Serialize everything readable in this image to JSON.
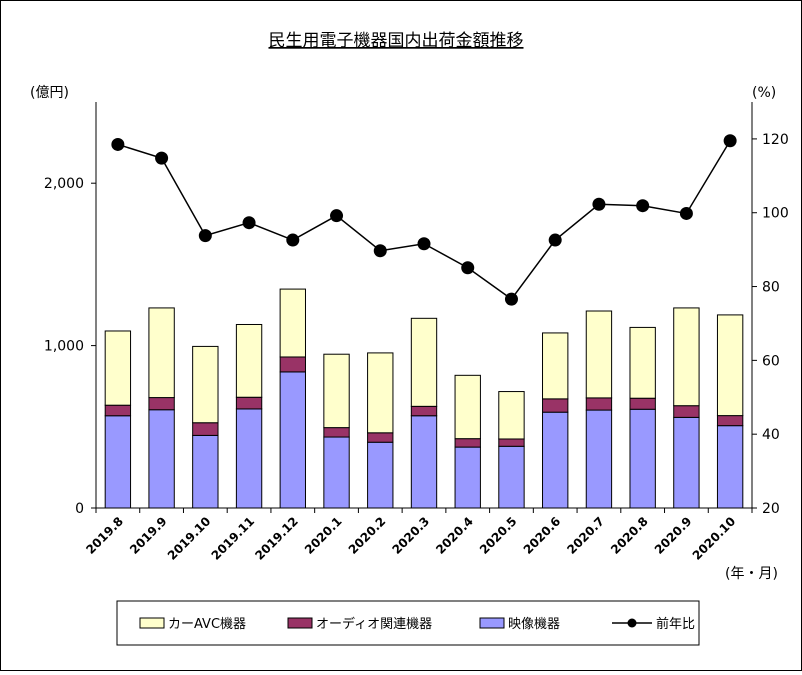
{
  "chart_data": {
    "type": "bar",
    "title": "民生用電子機器国内出荷金額推移",
    "y_left_unit": "(億円)",
    "y_right_unit": "(%)",
    "x_unit": "(年・月)",
    "categories": [
      "2019.8",
      "2019.9",
      "2019.10",
      "2019.11",
      "2019.12",
      "2020.1",
      "2020.2",
      "2020.3",
      "2020.4",
      "2020.5",
      "2020.6",
      "2020.7",
      "2020.8",
      "2020.9",
      "2020.10"
    ],
    "ylim_left": [
      0,
      2500
    ],
    "ylim_right": [
      20,
      130
    ],
    "left_ticks": [
      {
        "value": 0,
        "label": "0"
      },
      {
        "value": 1000,
        "label": "1,000"
      },
      {
        "value": 2000,
        "label": "2,000"
      }
    ],
    "right_ticks": [
      {
        "value": 20,
        "label": "20"
      },
      {
        "value": 40,
        "label": "40"
      },
      {
        "value": 60,
        "label": "60"
      },
      {
        "value": 80,
        "label": "80"
      },
      {
        "value": 100,
        "label": "100"
      },
      {
        "value": 120,
        "label": "120"
      }
    ],
    "stacked": true,
    "series": [
      {
        "name": "映像機器",
        "kind": "bar",
        "axis": "left",
        "color": "#9999ff",
        "values": [
          568,
          605,
          447,
          610,
          838,
          437,
          405,
          568,
          375,
          380,
          590,
          603,
          608,
          558,
          507
        ]
      },
      {
        "name": "オーディオ関連機器",
        "kind": "bar",
        "axis": "left",
        "color": "#993366",
        "values": [
          65,
          75,
          78,
          72,
          92,
          58,
          58,
          58,
          52,
          45,
          82,
          75,
          68,
          72,
          62
        ]
      },
      {
        "name": "カーAVC機器",
        "kind": "bar",
        "axis": "left",
        "color": "#ffffcc",
        "values": [
          457,
          552,
          470,
          448,
          418,
          452,
          492,
          542,
          390,
          292,
          406,
          535,
          436,
          602,
          620
        ]
      },
      {
        "name": "前年比",
        "kind": "line",
        "axis": "right",
        "color": "#000000",
        "values": [
          118.5,
          114.8,
          93.8,
          97.3,
          92.6,
          99.2,
          89.7,
          91.6,
          85.1,
          76.6,
          92.6,
          102.3,
          101.9,
          99.8,
          119.5
        ]
      }
    ],
    "legend": [
      {
        "label": "カーAVC機器",
        "marker": "box",
        "color": "#ffffcc"
      },
      {
        "label": "オーディオ関連機器",
        "marker": "box",
        "color": "#993366"
      },
      {
        "label": "映像機器",
        "marker": "box",
        "color": "#9999ff"
      },
      {
        "label": "前年比",
        "marker": "line-dot",
        "color": "#000000"
      }
    ],
    "legend_position": "bottom",
    "grid": false
  }
}
